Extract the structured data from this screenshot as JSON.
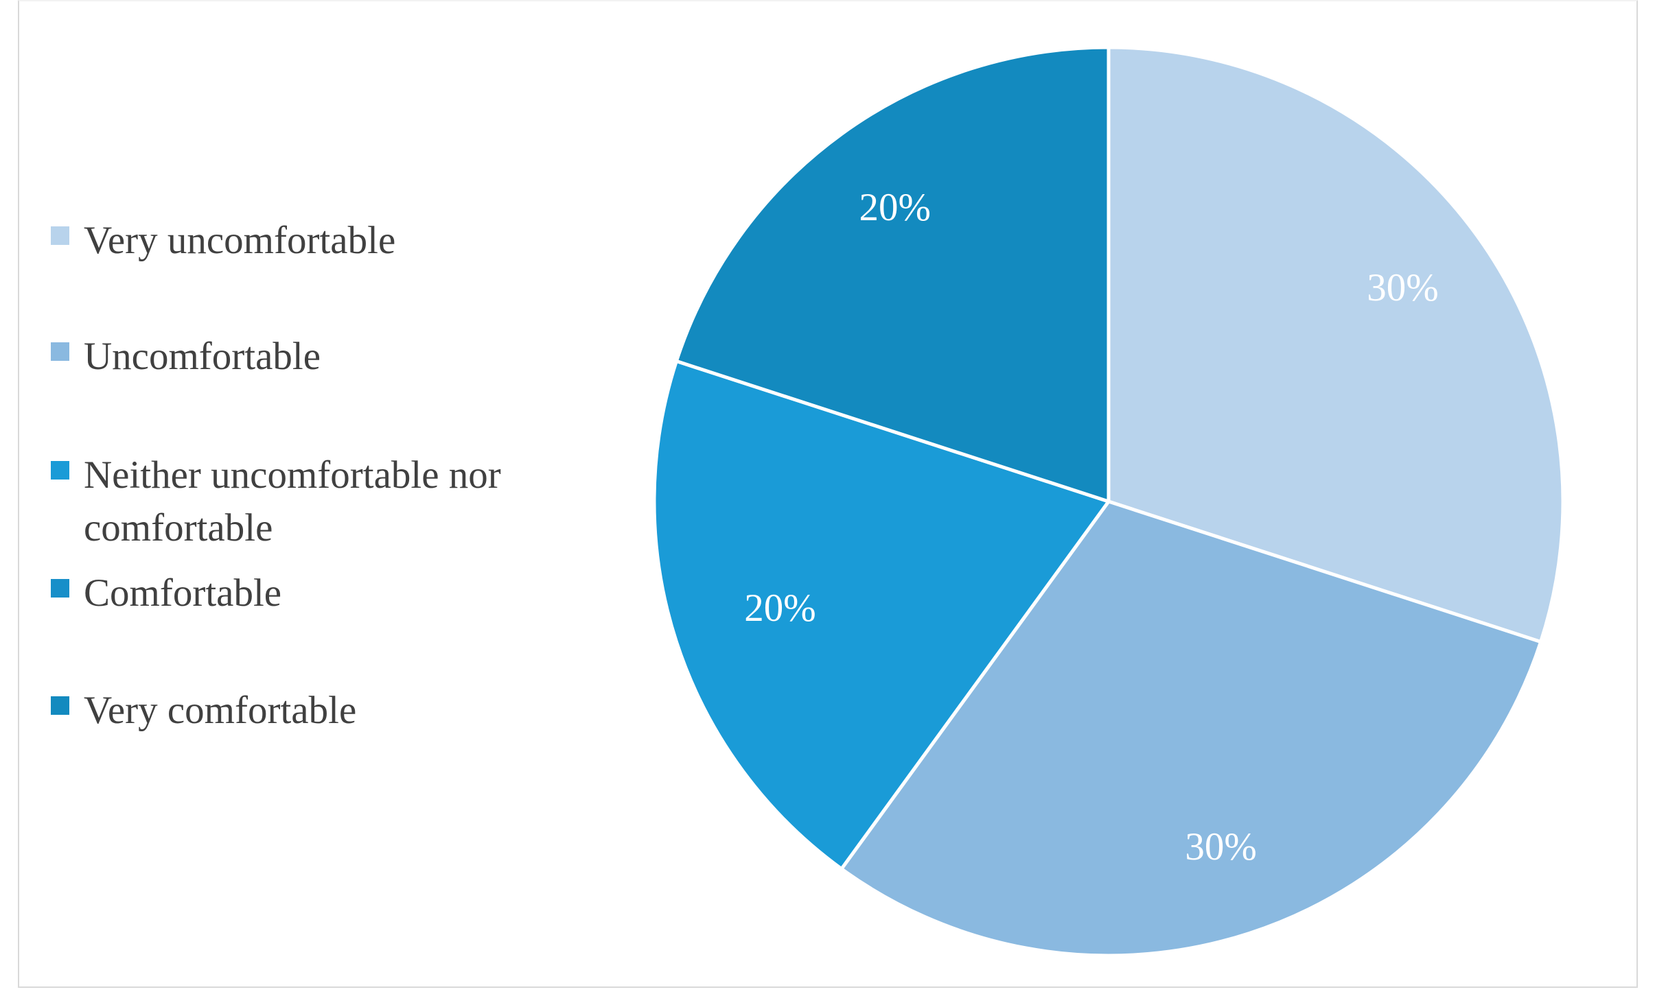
{
  "chart_data": {
    "type": "pie",
    "title": "",
    "categories": [
      "Very uncomfortable",
      "Uncomfortable",
      "Neither uncomfortable nor comfortable",
      "Comfortable",
      "Very comfortable"
    ],
    "values": [
      30,
      30,
      20,
      0,
      20
    ],
    "data_labels": [
      "30%",
      "30%",
      "20%",
      "",
      "20%"
    ],
    "colors": [
      "#b8d3ec",
      "#8ab9e0",
      "#1a9bd7",
      "#178fc9",
      "#138abf"
    ],
    "legend_position": "left",
    "start_angle": "12 o'clock",
    "direction": "clockwise"
  }
}
